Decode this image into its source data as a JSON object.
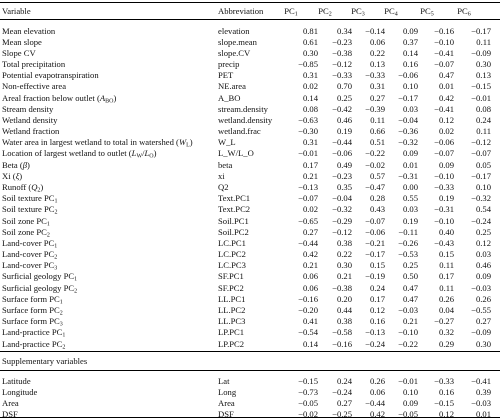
{
  "table": {
    "header": [
      "Variable",
      "Abbreviation",
      [
        "PC",
        {
          "sub": "1"
        }
      ],
      [
        "PC",
        {
          "sub": "2"
        }
      ],
      [
        "PC",
        {
          "sub": "3"
        }
      ],
      [
        "PC",
        {
          "sub": "4"
        }
      ],
      [
        "PC",
        {
          "sub": "5"
        }
      ],
      [
        "PC",
        {
          "sub": "6"
        }
      ]
    ],
    "rows": [
      {
        "variable": "Mean elevation",
        "abbreviation": "elevation",
        "values": [
          "0.81",
          "0.34",
          "−0.14",
          "0.09",
          "−0.16",
          "−0.17"
        ]
      },
      {
        "variable": "Mean slope",
        "abbreviation": "slope.mean",
        "values": [
          "0.61",
          "−0.23",
          "0.06",
          "0.37",
          "−0.10",
          "0.11"
        ]
      },
      {
        "variable": "Slope CV",
        "abbreviation": "slope.CV",
        "values": [
          "0.30",
          "−0.38",
          "0.22",
          "0.14",
          "−0.41",
          "−0.09"
        ]
      },
      {
        "variable": "Total precipitation",
        "abbreviation": "precip",
        "values": [
          "−0.85",
          "−0.12",
          "0.13",
          "0.16",
          "−0.07",
          "0.30"
        ]
      },
      {
        "variable": "Potential evapotranspiration",
        "abbreviation": "PET",
        "values": [
          "0.31",
          "−0.33",
          "−0.33",
          "−0.06",
          "0.47",
          "0.13"
        ]
      },
      {
        "variable": "Non-effective area",
        "abbreviation": "NE.area",
        "values": [
          "0.02",
          "0.70",
          "0.31",
          "0.10",
          "0.01",
          "−0.15"
        ]
      },
      {
        "variable": [
          "Areal fraction below outlet (",
          {
            "it": "A"
          },
          {
            "sub": "BO"
          },
          ")"
        ],
        "abbreviation": "A_BO",
        "values": [
          "0.14",
          "0.25",
          "0.27",
          "−0.17",
          "0.42",
          "−0.01"
        ]
      },
      {
        "variable": "Stream density",
        "abbreviation": "stream.density",
        "values": [
          "0.08",
          "−0.42",
          "−0.39",
          "0.03",
          "−0.41",
          "0.08"
        ]
      },
      {
        "variable": "Wetland density",
        "abbreviation": "wetland.density",
        "values": [
          "−0.63",
          "0.46",
          "0.11",
          "−0.04",
          "0.12",
          "0.24"
        ]
      },
      {
        "variable": "Wetland fraction",
        "abbreviation": "wetland.frac",
        "values": [
          "−0.30",
          "0.19",
          "0.66",
          "−0.36",
          "0.02",
          "0.11"
        ]
      },
      {
        "variable": [
          "Water area in largest wetland to total in watershed (",
          {
            "it": "W"
          },
          {
            "sub": "L"
          },
          ")"
        ],
        "abbreviation": "W_L",
        "values": [
          "0.31",
          "−0.44",
          "0.51",
          "−0.32",
          "−0.06",
          "−0.12"
        ]
      },
      {
        "variable": [
          "Location of largest wetland to outlet (",
          {
            "it": "L"
          },
          {
            "sub": "W"
          },
          "/",
          {
            "it": "L"
          },
          {
            "sub": "O"
          },
          ")"
        ],
        "abbreviation": "L_W/L_O",
        "values": [
          "−0.01",
          "−0.06",
          "−0.22",
          "0.09",
          "−0.07",
          "−0.07"
        ]
      },
      {
        "variable": [
          "Beta (",
          {
            "it": "β"
          },
          ")"
        ],
        "abbreviation": "beta",
        "values": [
          "0.17",
          "0.49",
          "−0.02",
          "0.01",
          "0.09",
          "0.05"
        ]
      },
      {
        "variable": [
          "Xi (",
          {
            "it": "ξ"
          },
          ")"
        ],
        "abbreviation": "xi",
        "values": [
          "0.21",
          "−0.23",
          "0.57",
          "−0.31",
          "−0.10",
          "−0.17"
        ]
      },
      {
        "variable": [
          "Runoff (",
          {
            "it": "Q"
          },
          {
            "sub": "2"
          },
          ")"
        ],
        "abbreviation": "Q2",
        "values": [
          "−0.13",
          "0.35",
          "−0.47",
          "0.00",
          "−0.33",
          "0.10"
        ]
      },
      {
        "variable": [
          "Soil texture PC",
          {
            "sub": "1"
          }
        ],
        "abbreviation": "Text.PC1",
        "values": [
          "−0.07",
          "−0.04",
          "0.28",
          "0.55",
          "0.19",
          "−0.32"
        ]
      },
      {
        "variable": [
          "Soil texture PC",
          {
            "sub": "2"
          }
        ],
        "abbreviation": "Text.PC2",
        "values": [
          "0.02",
          "−0.32",
          "0.43",
          "0.03",
          "−0.31",
          "0.54"
        ]
      },
      {
        "variable": [
          "Soil zone PC",
          {
            "sub": "1"
          }
        ],
        "abbreviation": "Soil.PC1",
        "values": [
          "−0.65",
          "−0.29",
          "−0.07",
          "0.19",
          "−0.10",
          "−0.24"
        ]
      },
      {
        "variable": [
          "Soil zone PC",
          {
            "sub": "2"
          }
        ],
        "abbreviation": "Soil.PC2",
        "values": [
          "0.27",
          "−0.12",
          "−0.06",
          "−0.11",
          "0.40",
          "0.25"
        ]
      },
      {
        "variable": [
          "Land-cover PC",
          {
            "sub": "1"
          }
        ],
        "abbreviation": "LC.PC1",
        "values": [
          "−0.44",
          "0.38",
          "−0.21",
          "−0.26",
          "−0.43",
          "0.12"
        ]
      },
      {
        "variable": [
          "Land-cover PC",
          {
            "sub": "2"
          }
        ],
        "abbreviation": "LC.PC2",
        "values": [
          "0.42",
          "0.22",
          "−0.17",
          "−0.53",
          "0.15",
          "0.03"
        ]
      },
      {
        "variable": [
          "Land-cover PC",
          {
            "sub": "3"
          }
        ],
        "abbreviation": "LC.PC3",
        "values": [
          "0.21",
          "0.30",
          "0.15",
          "0.25",
          "0.11",
          "0.46"
        ]
      },
      {
        "variable": [
          "Surficial geology PC",
          {
            "sub": "1"
          }
        ],
        "abbreviation": "SF.PC1",
        "values": [
          "0.06",
          "0.21",
          "−0.19",
          "0.50",
          "0.17",
          "0.09"
        ]
      },
      {
        "variable": [
          "Surficial geology PC",
          {
            "sub": "2"
          }
        ],
        "abbreviation": "SF.PC2",
        "values": [
          "0.06",
          "−0.38",
          "0.24",
          "0.47",
          "0.11",
          "−0.03"
        ]
      },
      {
        "variable": [
          "Surface form PC",
          {
            "sub": "1"
          }
        ],
        "abbreviation": "LL.PC1",
        "values": [
          "−0.16",
          "0.20",
          "0.17",
          "0.47",
          "0.26",
          "0.26"
        ]
      },
      {
        "variable": [
          "Surface form PC",
          {
            "sub": "2"
          }
        ],
        "abbreviation": "LL.PC2",
        "values": [
          "−0.20",
          "0.44",
          "0.12",
          "−0.03",
          "0.04",
          "−0.55"
        ]
      },
      {
        "variable": [
          "Surface form PC",
          {
            "sub": "3"
          }
        ],
        "abbreviation": "LL.PC3",
        "values": [
          "0.41",
          "0.38",
          "0.16",
          "0.21",
          "−0.27",
          "0.27"
        ]
      },
      {
        "variable": [
          "Land-practice PC",
          {
            "sub": "1"
          }
        ],
        "abbreviation": "LP.PC1",
        "values": [
          "−0.54",
          "−0.58",
          "−0.13",
          "−0.10",
          "0.32",
          "−0.09"
        ]
      },
      {
        "variable": [
          "Land-practice PC",
          {
            "sub": "2"
          }
        ],
        "abbreviation": "LP.PC2",
        "values": [
          "0.14",
          "−0.16",
          "−0.24",
          "−0.22",
          "0.29",
          "0.30"
        ]
      }
    ],
    "section": "Supplementary variables",
    "supplementary_rows": [
      {
        "variable": "Latitude",
        "abbreviation": "Lat",
        "values": [
          "−0.15",
          "0.24",
          "0.26",
          "−0.01",
          "−0.33",
          "−0.41"
        ]
      },
      {
        "variable": "Longitude",
        "abbreviation": "Long",
        "values": [
          "−0.73",
          "−0.24",
          "0.06",
          "0.10",
          "0.16",
          "0.39"
        ]
      },
      {
        "variable": "Area",
        "abbreviation": "Area",
        "values": [
          "−0.05",
          "0.27",
          "−0.44",
          "0.09",
          "−0.15",
          "−0.03"
        ]
      },
      {
        "variable": "DSF",
        "abbreviation": "DSF",
        "values": [
          "−0.02",
          "−0.25",
          "0.42",
          "−0.05",
          "0.12",
          "0.01"
        ]
      }
    ]
  }
}
